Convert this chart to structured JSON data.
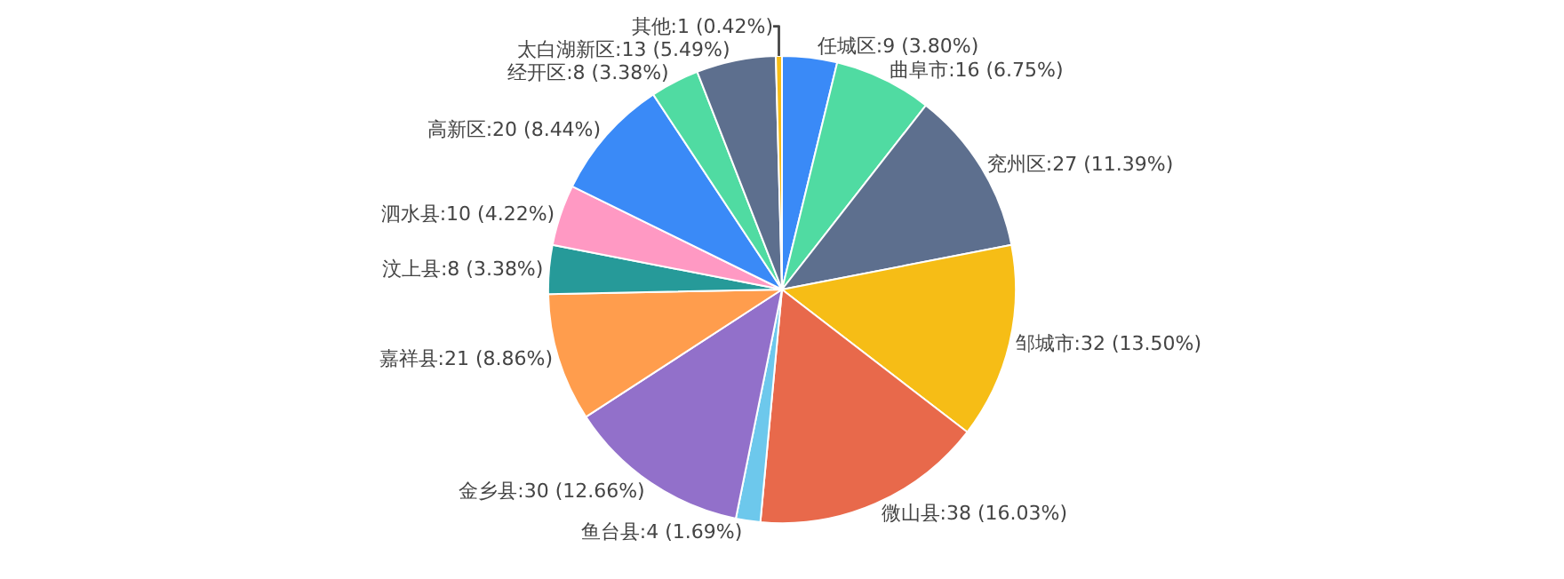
{
  "chart_data": {
    "type": "pie",
    "categories": [
      "任城区",
      "曲阜市",
      "兖州区",
      "邹城市",
      "微山县",
      "鱼台县",
      "金乡县",
      "嘉祥县",
      "汶上县",
      "泗水县",
      "高新区",
      "经开区",
      "太白湖新区",
      "其他"
    ],
    "values": [
      9,
      16,
      27,
      32,
      38,
      4,
      30,
      21,
      8,
      10,
      20,
      8,
      13,
      1
    ],
    "colors": [
      "#3a8af7",
      "#50dba2",
      "#5d6f8e",
      "#f6bd16",
      "#e8694b",
      "#6dc8ec",
      "#9270ca",
      "#ff9d4d",
      "#269a99",
      "#ff99c3",
      "#3a8af7",
      "#50dba2",
      "#5d6f8e",
      "#f6bd16"
    ],
    "value_labels": [
      "9 (3.80%)",
      "16 (6.75%)",
      "27 (11.39%)",
      "32 (13.50%)",
      "38 (16.03%)",
      "4 (1.69%)",
      "30 (12.66%)",
      "21 (8.86%)",
      "8 (3.38%)",
      "10 (4.22%)",
      "20 (8.44%)",
      "8 (3.38%)",
      "13 (5.49%)",
      "1 (0.42%)"
    ],
    "legend": false
  }
}
